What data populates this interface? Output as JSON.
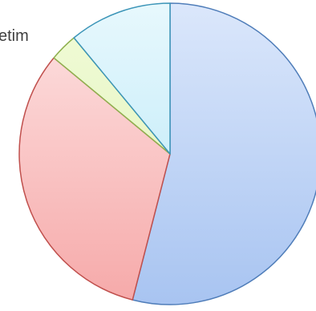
{
  "chart_data": {
    "type": "pie",
    "title": "",
    "slices": [
      {
        "label": "",
        "value": 54,
        "color_top": "#dbe7fb",
        "color_bottom": "#a8c4f1",
        "stroke": "#4f7db9"
      },
      {
        "label": "",
        "value": 32,
        "color_top": "#fde3e3",
        "color_bottom": "#f6a9a9",
        "stroke": "#c0504d"
      },
      {
        "label": "",
        "value": 3,
        "color_top": "#f1fbd8",
        "color_bottom": "#dff2b6",
        "stroke": "#8fb04f"
      },
      {
        "label": "",
        "value": 11,
        "color_top": "#e7f8fd",
        "color_bottom": "#b4e6f7",
        "stroke": "#3c95b8"
      }
    ],
    "visible_label_fragment": "etim",
    "legend": "none"
  }
}
